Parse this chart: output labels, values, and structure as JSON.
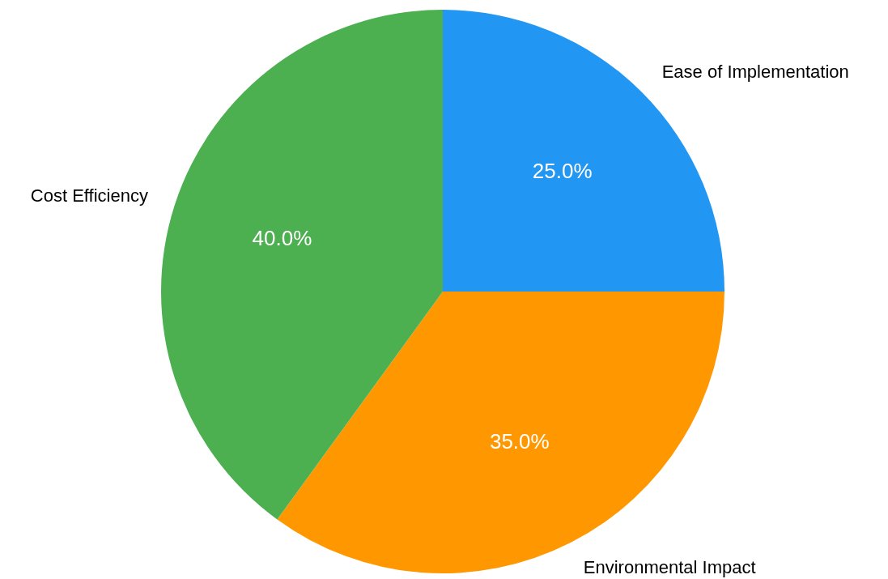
{
  "chart_data": {
    "type": "pie",
    "categories": [
      "Ease of Implementation",
      "Environmental Impact",
      "Cost Efficiency"
    ],
    "values": [
      25,
      35,
      40
    ],
    "colors": [
      "#2196f3",
      "#ff9800",
      "#4caf50"
    ],
    "value_labels": [
      "25.0%",
      "35.0%",
      "40.0%"
    ]
  }
}
